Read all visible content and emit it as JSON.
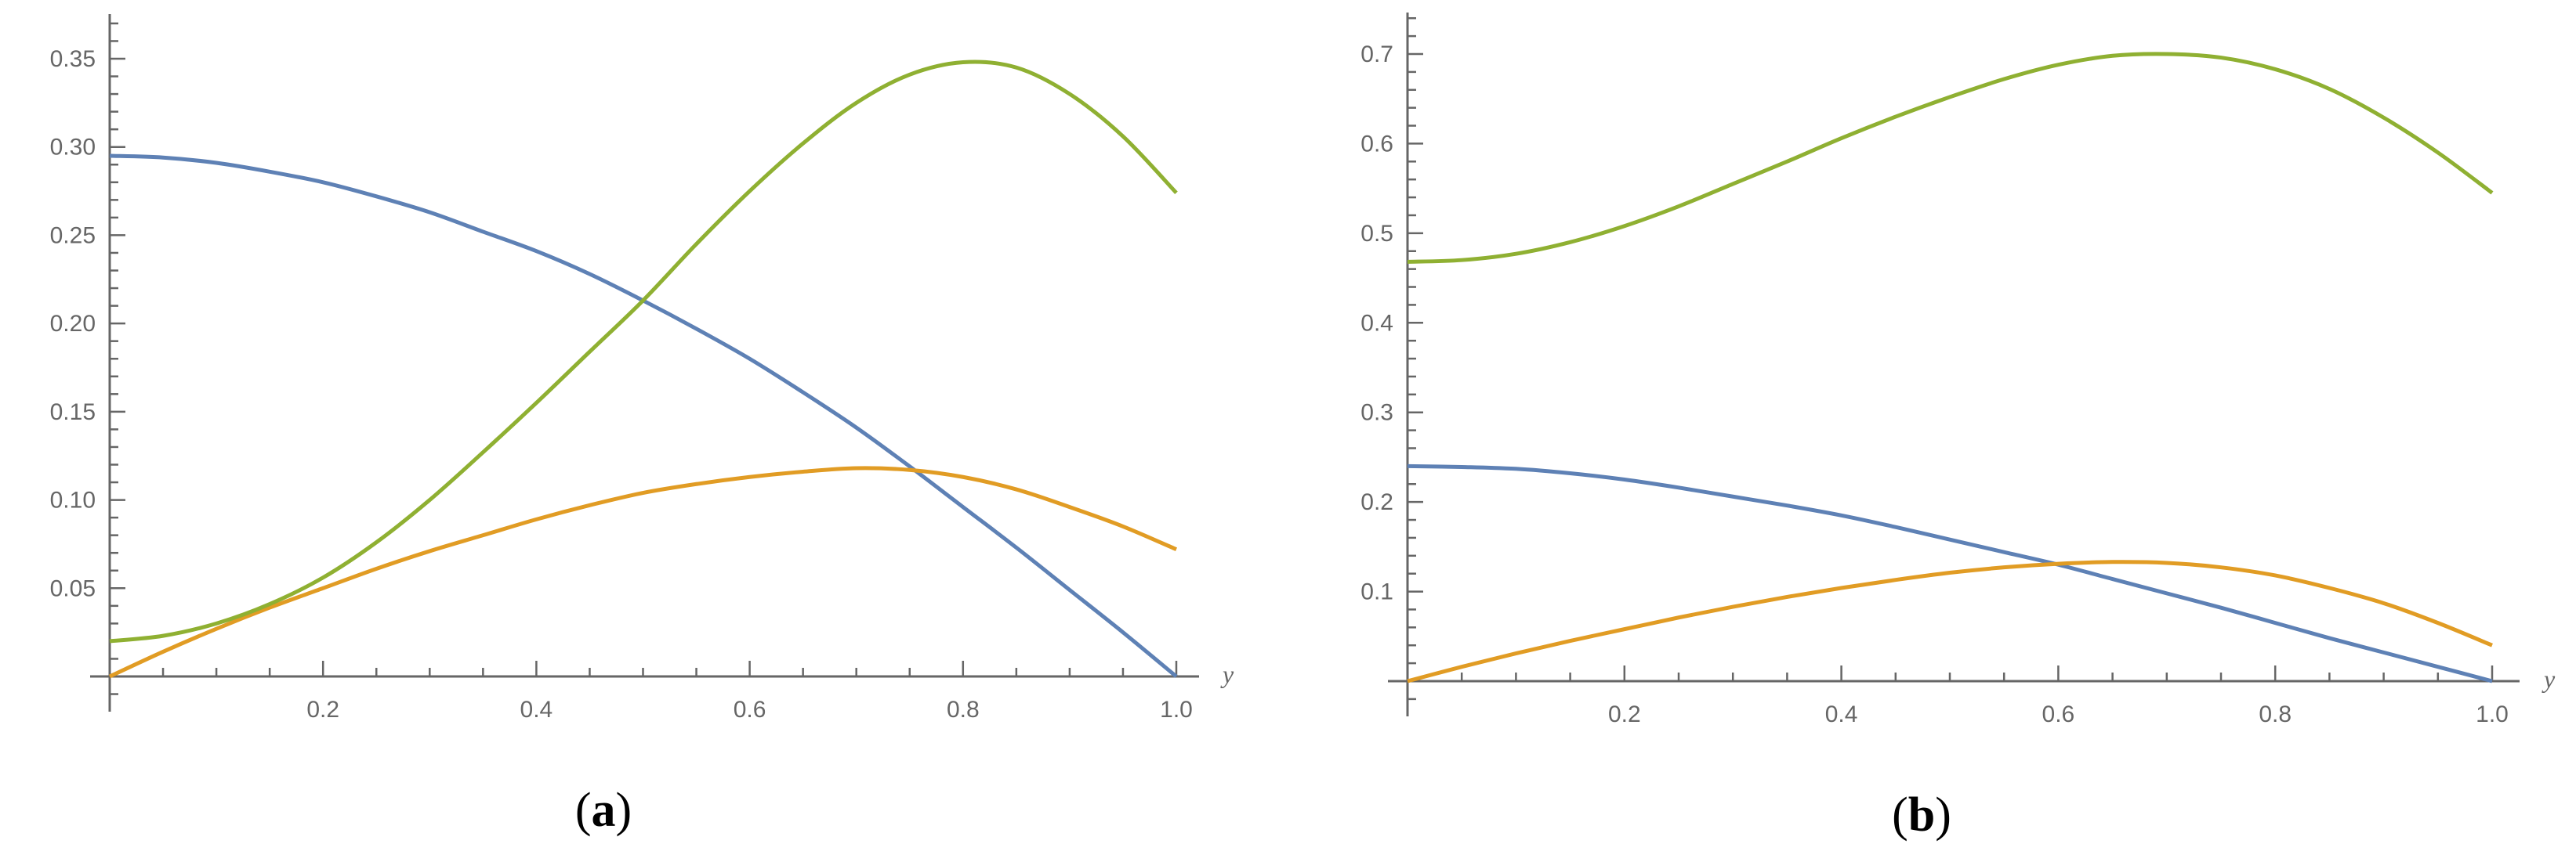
{
  "figure": {
    "panels": [
      {
        "caption_open": "(",
        "caption_letter": "a",
        "caption_close": ")"
      },
      {
        "caption_open": "(",
        "caption_letter": "b",
        "caption_close": ")"
      }
    ]
  },
  "colors": {
    "blue": "#5E81B5",
    "orange": "#E19C24",
    "green": "#8FB032",
    "axis": "#666666"
  },
  "chart_data": [
    {
      "type": "line",
      "title": "(a)",
      "xlabel": "y",
      "ylabel": "",
      "xlim": [
        0,
        1.0
      ],
      "ylim": [
        0,
        0.37
      ],
      "x_ticks": [
        0.2,
        0.4,
        0.6,
        0.8,
        1.0
      ],
      "x_tick_labels": [
        "0.2",
        "0.4",
        "0.6",
        "0.8",
        "1.0"
      ],
      "y_ticks": [
        0.05,
        0.1,
        0.15,
        0.2,
        0.25,
        0.3,
        0.35
      ],
      "y_tick_labels": [
        "0.05",
        "0.10",
        "0.15",
        "0.20",
        "0.25",
        "0.30",
        "0.35"
      ],
      "x_minor_step": 0.05,
      "y_minor_step": 0.01,
      "grid": false,
      "legend": null,
      "x": [
        0,
        0.05,
        0.1,
        0.15,
        0.2,
        0.25,
        0.3,
        0.35,
        0.4,
        0.45,
        0.5,
        0.55,
        0.6,
        0.65,
        0.7,
        0.75,
        0.8,
        0.85,
        0.9,
        0.95,
        1.0
      ],
      "series": [
        {
          "name": "blue",
          "color": "#5E81B5",
          "values": [
            0.295,
            0.294,
            0.291,
            0.286,
            0.28,
            0.272,
            0.263,
            0.252,
            0.241,
            0.228,
            0.213,
            0.197,
            0.18,
            0.161,
            0.141,
            0.119,
            0.096,
            0.073,
            0.049,
            0.025,
            0.0
          ]
        },
        {
          "name": "orange",
          "color": "#E19C24",
          "values": [
            0.0,
            0.014,
            0.027,
            0.039,
            0.05,
            0.061,
            0.071,
            0.08,
            0.089,
            0.097,
            0.104,
            0.109,
            0.113,
            0.116,
            0.118,
            0.117,
            0.113,
            0.106,
            0.096,
            0.085,
            0.072
          ]
        },
        {
          "name": "green",
          "color": "#8FB032",
          "values": [
            0.02,
            0.023,
            0.03,
            0.041,
            0.056,
            0.076,
            0.1,
            0.127,
            0.155,
            0.184,
            0.213,
            0.245,
            0.275,
            0.302,
            0.325,
            0.341,
            0.348,
            0.345,
            0.33,
            0.306,
            0.274
          ]
        }
      ]
    },
    {
      "type": "line",
      "title": "(b)",
      "xlabel": "y",
      "ylabel": "",
      "xlim": [
        0,
        1.0
      ],
      "ylim": [
        0,
        0.74
      ],
      "x_ticks": [
        0.2,
        0.4,
        0.6,
        0.8,
        1.0
      ],
      "x_tick_labels": [
        "0.2",
        "0.4",
        "0.6",
        "0.8",
        "1.0"
      ],
      "y_ticks": [
        0.1,
        0.2,
        0.3,
        0.4,
        0.5,
        0.6,
        0.7
      ],
      "y_tick_labels": [
        "0.1",
        "0.2",
        "0.3",
        "0.4",
        "0.5",
        "0.6",
        "0.7"
      ],
      "x_minor_step": 0.05,
      "y_minor_step": 0.02,
      "grid": false,
      "legend": null,
      "x": [
        0,
        0.05,
        0.1,
        0.15,
        0.2,
        0.25,
        0.3,
        0.35,
        0.4,
        0.45,
        0.5,
        0.55,
        0.6,
        0.65,
        0.7,
        0.75,
        0.8,
        0.85,
        0.9,
        0.95,
        1.0
      ],
      "series": [
        {
          "name": "green",
          "color": "#8FB032",
          "values": [
            0.468,
            0.47,
            0.477,
            0.49,
            0.508,
            0.53,
            0.555,
            0.58,
            0.606,
            0.63,
            0.652,
            0.672,
            0.688,
            0.698,
            0.7,
            0.696,
            0.683,
            0.661,
            0.629,
            0.59,
            0.545
          ]
        },
        {
          "name": "blue",
          "color": "#5E81B5",
          "values": [
            0.24,
            0.239,
            0.237,
            0.232,
            0.225,
            0.216,
            0.206,
            0.196,
            0.185,
            0.172,
            0.158,
            0.144,
            0.13,
            0.114,
            0.098,
            0.082,
            0.065,
            0.048,
            0.032,
            0.016,
            0.0
          ]
        },
        {
          "name": "orange",
          "color": "#E19C24",
          "values": [
            0.0,
            0.016,
            0.031,
            0.045,
            0.058,
            0.071,
            0.083,
            0.094,
            0.104,
            0.113,
            0.121,
            0.127,
            0.131,
            0.133,
            0.132,
            0.127,
            0.118,
            0.104,
            0.087,
            0.065,
            0.04
          ]
        }
      ]
    }
  ]
}
